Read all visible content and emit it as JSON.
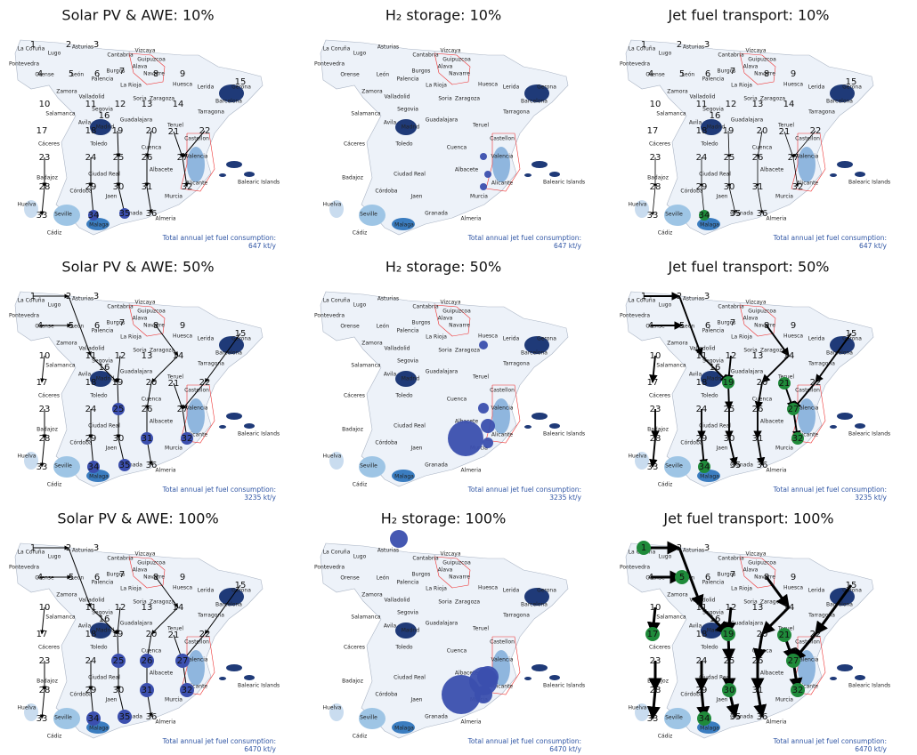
{
  "panels": [
    {
      "title": "Solar PV & AWE: 10%",
      "note": "Total annual jet fuel consumption:",
      "total": "647 kt/y"
    },
    {
      "title": "H₂ storage: 10%",
      "note": "Total annual jet fuel consumption:",
      "total": "647 kt/y"
    },
    {
      "title": "Jet fuel transport: 10%",
      "note": "Total annual jet fuel consumption:",
      "total": "647 kt/y"
    },
    {
      "title": "Solar PV & AWE: 50%",
      "note": "Total annual jet fuel consumption:",
      "total": "3235 kt/y"
    },
    {
      "title": "H₂ storage: 50%",
      "note": "Total annual jet fuel consumption:",
      "total": "3235 kt/y"
    },
    {
      "title": "Jet fuel transport: 50%",
      "note": "Total annual jet fuel consumption:",
      "total": "3235 kt/y"
    },
    {
      "title": "Solar PV & AWE: 100%",
      "note": "Total annual jet fuel consumption:",
      "total": "6470 kt/y"
    },
    {
      "title": "H₂ storage: 100%",
      "note": "Total annual jet fuel consumption:",
      "total": "6470 kt/y"
    },
    {
      "title": "Jet fuel transport: 100%",
      "note": "Total annual jet fuel consumption:",
      "total": "6470 kt/y"
    }
  ],
  "province_names": [
    "La Coruña",
    "Lugo",
    "Asturias",
    "Cantabria",
    "Vizcaya",
    "Guipuzcoa",
    "Alava",
    "Navarre",
    "Pontevedra",
    "Orense",
    "León",
    "Palencia",
    "Burgos",
    "La Rioja",
    "Huesca",
    "Lerida",
    "Gerona",
    "Barcelona",
    "Tarragona",
    "Zaragoza",
    "Soria",
    "Zamora",
    "Valladolid",
    "Salamanca",
    "Segovia",
    "Avila",
    "Madrid",
    "Guadalajara",
    "Teruel",
    "Castellon",
    "Cuenca",
    "Valencia",
    "Toledo",
    "Cáceres",
    "Badajoz",
    "Ciudad Real",
    "Albacete",
    "Alicante",
    "Murcia",
    "Córdoba",
    "Jaen",
    "Huelva",
    "Seville",
    "Cádiz",
    "Malaga",
    "Granada",
    "Almeria"
  ],
  "islands_label": "Balearic Islands",
  "node_numbers": [
    1,
    2,
    3,
    4,
    5,
    6,
    7,
    8,
    9,
    10,
    11,
    12,
    13,
    14,
    15,
    16,
    17,
    18,
    19,
    20,
    21,
    22,
    23,
    24,
    25,
    26,
    27,
    28,
    29,
    30,
    31,
    32,
    33,
    34,
    35,
    36
  ]
}
